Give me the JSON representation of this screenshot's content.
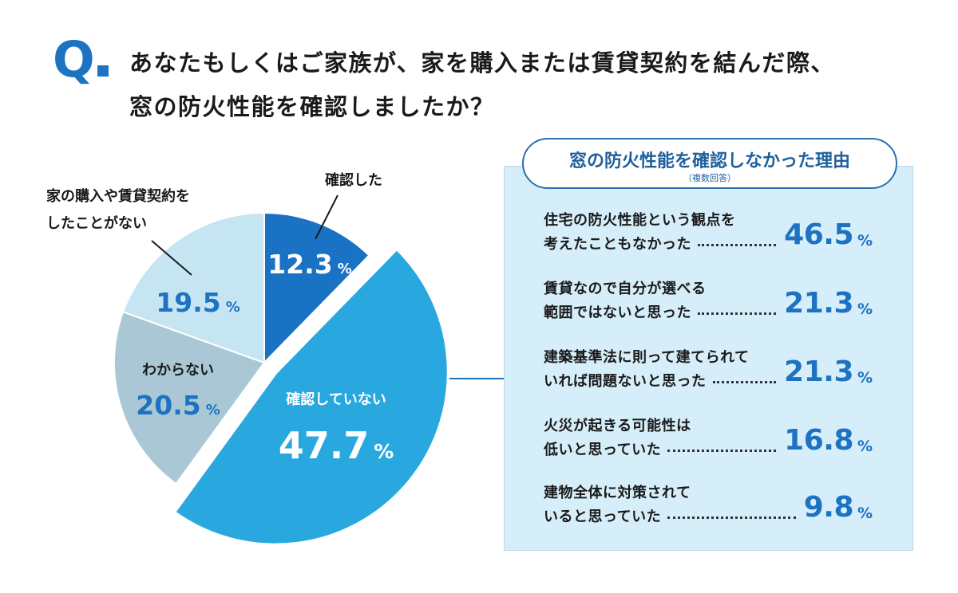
{
  "question": {
    "mark": "Q",
    "line1": "あなたもしくはご家族が、家を購入または賃貸契約を結んだ際、",
    "line2": "窓の防火性能を確認しましたか？"
  },
  "colors": {
    "confirmed": "#1a72c4",
    "not_confirmed": "#29a8e0",
    "unknown": "#a9c7d4",
    "never": "#c6e5f3",
    "accent": "#1d72c2",
    "panel_bg": "#d6eef9"
  },
  "chart_data": [
    {
      "type": "pie",
      "unit": "%",
      "slices": [
        {
          "label": "確認した",
          "value": 12.3
        },
        {
          "label": "確認していない",
          "value": 47.7
        },
        {
          "label": "わからない",
          "value": 20.5
        },
        {
          "label": "家の購入や賃貸契約をしたことがない",
          "label_lines": [
            "家の購入や賃貸契約を",
            "したことがない"
          ],
          "value": 19.5
        }
      ]
    },
    {
      "type": "bar",
      "title": "窓の防火性能を確認しなかった理由",
      "subtitle": "（複数回答）",
      "unit": "%",
      "categories": [
        [
          "住宅の防火性能という観点を",
          "考えたこともなかった"
        ],
        [
          "賃貸なので自分が選べる",
          "範囲ではないと思った"
        ],
        [
          "建築基準法に則って建てられて",
          "いれば問題ないと思った"
        ],
        [
          "火災が起きる可能性は",
          "低いと思っていた"
        ],
        [
          "建物全体に対策されて",
          "いると思っていた"
        ]
      ],
      "values": [
        46.5,
        21.3,
        21.3,
        16.8,
        9.8
      ]
    }
  ]
}
